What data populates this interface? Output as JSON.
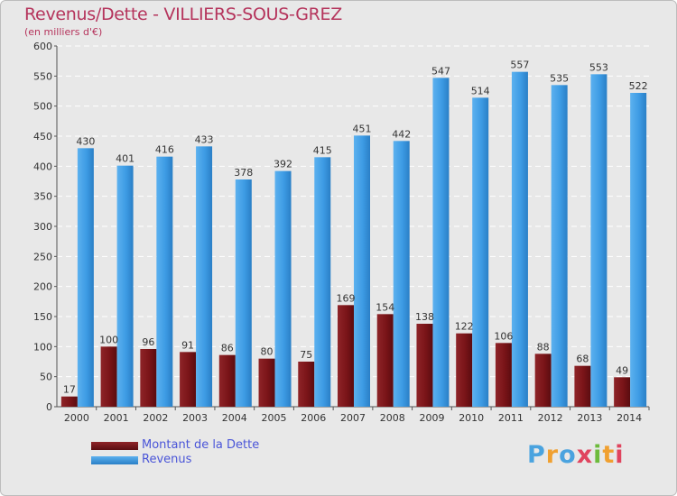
{
  "title": "Revenus/Dette - VILLIERS-SOUS-GREZ",
  "subtitle": "(en milliers d'€)",
  "logo": {
    "text": "Proxiti"
  },
  "colors": {
    "debt": "#7a1418",
    "revenue": "#3d9be4",
    "title": "#b5345c",
    "legend_text": "#4a55d8"
  },
  "chart_data": {
    "type": "bar",
    "title": "Revenus/Dette - VILLIERS-SOUS-GREZ",
    "ylabel": "(en milliers d'€)",
    "xlabel": "",
    "categories": [
      "2000",
      "2001",
      "2002",
      "2003",
      "2004",
      "2005",
      "2006",
      "2007",
      "2008",
      "2009",
      "2010",
      "2011",
      "2012",
      "2013",
      "2014"
    ],
    "series": [
      {
        "name": "Montant de la Dette",
        "values": [
          17,
          100,
          96,
          91,
          86,
          80,
          75,
          169,
          154,
          138,
          122,
          106,
          88,
          68,
          49
        ]
      },
      {
        "name": "Revenus",
        "values": [
          430,
          401,
          416,
          433,
          378,
          392,
          415,
          451,
          442,
          547,
          514,
          557,
          535,
          553,
          522
        ]
      }
    ],
    "ylim": [
      0,
      600
    ],
    "yticks": [
      0,
      50,
      100,
      150,
      200,
      250,
      300,
      350,
      400,
      450,
      500,
      550,
      600
    ],
    "grid": true,
    "legend": "bottom-left"
  }
}
